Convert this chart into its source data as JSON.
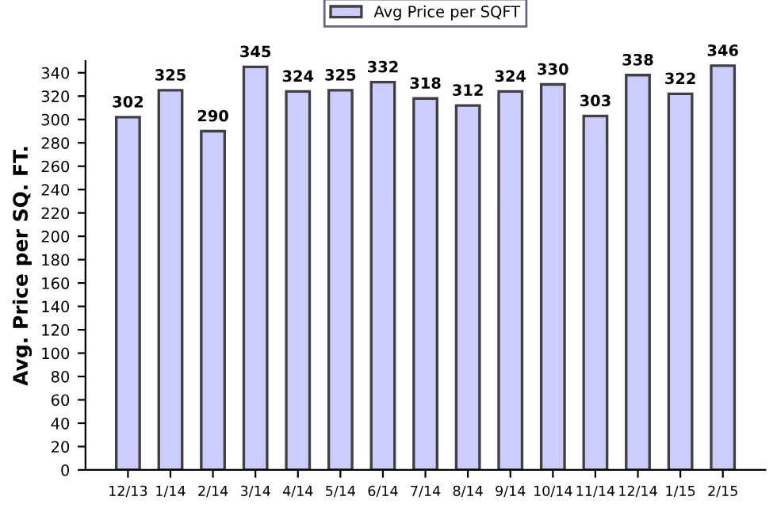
{
  "chart_data": {
    "type": "bar",
    "ylabel": "Avg. Price per SQ. FT.",
    "categories": [
      "12/13",
      "1/14",
      "2/14",
      "3/14",
      "4/14",
      "5/14",
      "6/14",
      "7/14",
      "8/14",
      "9/14",
      "10/14",
      "11/14",
      "12/14",
      "1/15",
      "2/15"
    ],
    "series": [
      {
        "name": "Avg Price per SQFT",
        "color": "#ccccff",
        "values": [
          302,
          325,
          290,
          345,
          324,
          325,
          332,
          318,
          312,
          324,
          330,
          303,
          338,
          322,
          346
        ]
      }
    ],
    "ylim": [
      0,
      350
    ],
    "yticks": [
      0,
      20,
      40,
      60,
      80,
      100,
      120,
      140,
      160,
      180,
      200,
      220,
      240,
      260,
      280,
      300,
      320,
      340
    ],
    "data_labels": true,
    "legend": "top",
    "grid": false
  }
}
